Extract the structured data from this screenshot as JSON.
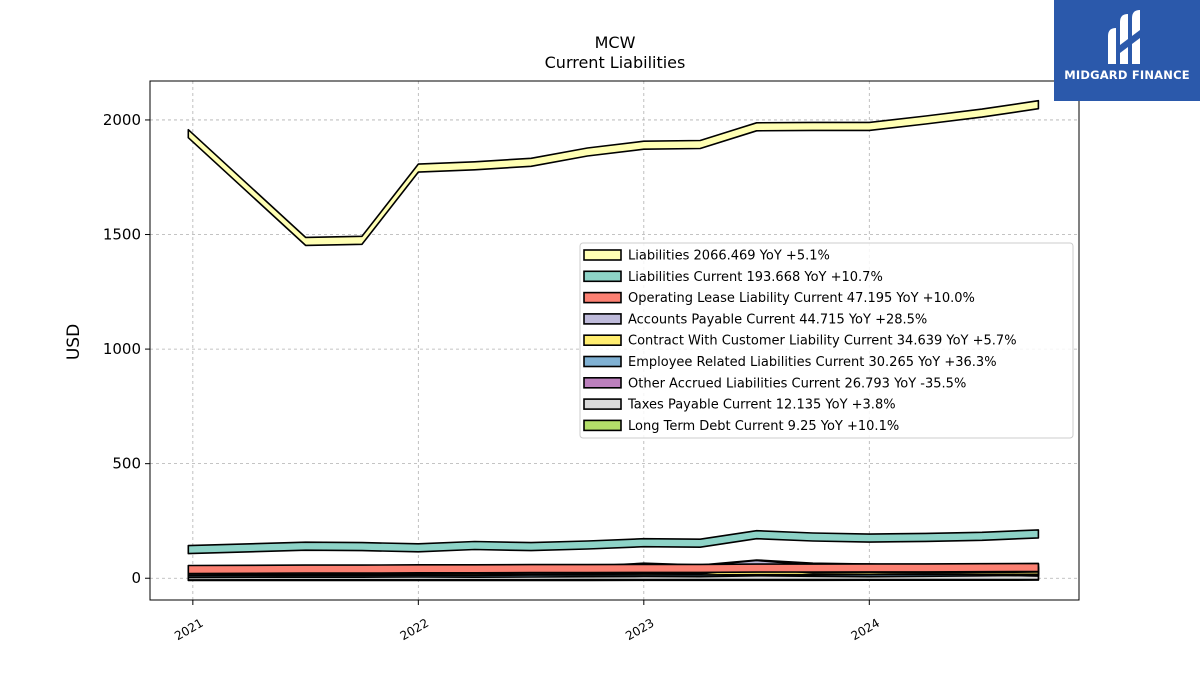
{
  "chart_data": {
    "type": "area",
    "title": "MCW",
    "subtitle": "Current  Liabilities",
    "ylabel": "USD",
    "xlabel": "",
    "ylim": [
      -95,
      2170
    ],
    "xlim": [
      2020.81,
      2024.93
    ],
    "yticks": [
      0,
      500,
      1000,
      1500,
      2000
    ],
    "xticks": [
      {
        "value": 2021,
        "label": "2021"
      },
      {
        "value": 2022,
        "label": "2022"
      },
      {
        "value": 2023,
        "label": "2023"
      },
      {
        "value": 2024,
        "label": "2024"
      }
    ],
    "grid": true,
    "legend_position": "center-right",
    "x": [
      2020.98,
      2021.5,
      2021.75,
      2022.0,
      2022.25,
      2022.5,
      2022.75,
      2023.0,
      2023.25,
      2023.5,
      2023.75,
      2024.0,
      2024.25,
      2024.5,
      2024.75
    ],
    "series": [
      {
        "name": "Liabilities",
        "legend": "Liabilities  2066.469 YoY +5.1%",
        "color": "#ffffb3",
        "values": [
          1940,
          1470,
          1475,
          1790,
          1800,
          1815,
          1860,
          1890,
          1893,
          1970,
          1972,
          1972,
          2000,
          2030,
          2066.469
        ]
      },
      {
        "name": "Liabilities Current",
        "legend": "Liabilities Current  193.668 YoY +10.7%",
        "color": "#8dd3c7",
        "values": [
          125,
          140,
          138,
          133,
          143,
          138,
          145,
          155,
          153,
          190,
          180,
          175,
          178,
          183,
          193.668
        ]
      },
      {
        "name": "Operating Lease Liability Current",
        "legend": "Operating Lease Liability Current  47.195 YoY +10.0%",
        "color": "#fb8072",
        "values": [
          38,
          40,
          40,
          41,
          41,
          42,
          42,
          43,
          43,
          44,
          44,
          45,
          45,
          46,
          47.195
        ]
      },
      {
        "name": "Accounts Payable Current",
        "legend": "Accounts Payable Current  44.715 YoY +28.5%",
        "color": "#bebada",
        "values": [
          32,
          34,
          35,
          35,
          36,
          36,
          37,
          38,
          37,
          60,
          40,
          42,
          40,
          43,
          44.715
        ]
      },
      {
        "name": "Contract With Customer Liability Current",
        "legend": "Contract With Customer Liability Current  34.639 YoY +5.7%",
        "color": "#ffed6f",
        "values": [
          28,
          29,
          29,
          30,
          30,
          31,
          31,
          32,
          32,
          33,
          33,
          33,
          34,
          34,
          34.639
        ]
      },
      {
        "name": "Employee Related Liabilities Current",
        "legend": "Employee Related Liabilities Current  30.265 YoY +36.3%",
        "color": "#80b1d3",
        "values": [
          20,
          22,
          22,
          23,
          22,
          23,
          24,
          25,
          24,
          28,
          26,
          24,
          26,
          28,
          30.265
        ]
      },
      {
        "name": "Other Accrued Liabilities Current",
        "legend": "Other Accrued Liabilities Current  26.793 YoY -35.5%",
        "color": "#bc80bd",
        "values": [
          30,
          32,
          32,
          33,
          33,
          34,
          35,
          48,
          40,
          62,
          48,
          44,
          38,
          32,
          26.793
        ]
      },
      {
        "name": "Taxes Payable Current",
        "legend": "Taxes Payable Current  12.135 YoY +3.8%",
        "color": "#d9d9d9",
        "values": [
          10,
          11,
          11,
          11,
          11,
          11,
          12,
          12,
          12,
          12,
          12,
          12,
          12,
          12,
          12.135
        ]
      },
      {
        "name": "Long Term Debt Current",
        "legend": "Long Term Debt Current  9.25 YoY +10.1%",
        "color": "#b3de69",
        "values": [
          8,
          8,
          8,
          8,
          8,
          8,
          8,
          8.5,
          8.5,
          8.5,
          8.5,
          9,
          9,
          9,
          9.25
        ]
      }
    ]
  },
  "logo": {
    "name": "MIDGARD FINANCE",
    "background": "#2b59ab"
  }
}
